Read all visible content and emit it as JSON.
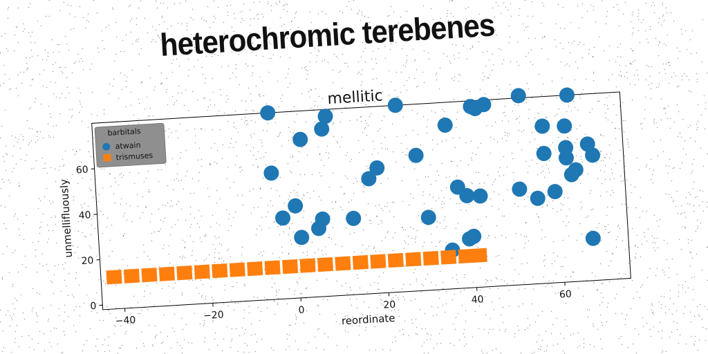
{
  "page": {
    "banner_title": "heterochromic terebenes"
  },
  "chart_data": {
    "type": "scatter",
    "title": "mellitic",
    "xlabel": "reordinate",
    "ylabel": "unmellifluously",
    "xlim": [
      -45,
      75
    ],
    "ylim": [
      -2,
      80
    ],
    "xticks": [
      -40,
      -20,
      0,
      20,
      40,
      60
    ],
    "yticks": [
      0,
      20,
      40,
      60
    ],
    "grid": false,
    "legend": {
      "title": "barbitals",
      "placement": "top-left"
    },
    "series": [
      {
        "name": "atwain",
        "color": "#1f77b4",
        "marker": "circle",
        "points": [
          [
            -5,
            80
          ],
          [
            2,
            67.5
          ],
          [
            8,
            77
          ],
          [
            7,
            71.5
          ],
          [
            24,
            80
          ],
          [
            -5,
            53.5
          ],
          [
            17,
            48.5
          ],
          [
            19,
            53
          ],
          [
            28,
            57.5
          ],
          [
            35,
            70
          ],
          [
            41,
            77.5
          ],
          [
            42,
            76.5
          ],
          [
            44,
            78
          ],
          [
            52,
            81
          ],
          [
            63,
            80
          ],
          [
            57,
            67
          ],
          [
            62,
            66.5
          ],
          [
            57,
            55
          ],
          [
            62,
            57
          ],
          [
            67,
            58
          ],
          [
            62,
            52.5
          ],
          [
            68,
            53
          ],
          [
            64,
            47
          ],
          [
            63,
            45
          ],
          [
            37,
            42.5
          ],
          [
            39,
            38.5
          ],
          [
            42,
            38
          ],
          [
            51,
            40
          ],
          [
            55,
            35.5
          ],
          [
            59,
            38
          ],
          [
            -3,
            33.5
          ],
          [
            0,
            38.5
          ],
          [
            6,
            32
          ],
          [
            13,
            31.5
          ],
          [
            30,
            30
          ],
          [
            5,
            28
          ],
          [
            1,
            24.5
          ],
          [
            39,
            19.5
          ],
          [
            40,
            20.5
          ],
          [
            35,
            15
          ],
          [
            67,
            16.5
          ]
        ]
      },
      {
        "name": "trismuses",
        "color": "#ff7f0e",
        "marker": "square",
        "points": [
          [
            -42,
            12
          ],
          [
            -38,
            12
          ],
          [
            -34,
            12
          ],
          [
            -30,
            12
          ],
          [
            -26,
            12
          ],
          [
            -22,
            12
          ],
          [
            -18,
            12
          ],
          [
            -14,
            12
          ],
          [
            -10,
            12
          ],
          [
            -6,
            12
          ],
          [
            -2,
            12
          ],
          [
            2,
            12
          ],
          [
            6,
            12
          ],
          [
            10,
            12
          ],
          [
            14,
            12
          ],
          [
            18,
            12
          ],
          [
            22,
            12
          ],
          [
            26,
            12
          ],
          [
            30,
            12
          ],
          [
            34,
            12
          ],
          [
            38,
            12
          ],
          [
            41,
            12
          ]
        ]
      }
    ]
  }
}
